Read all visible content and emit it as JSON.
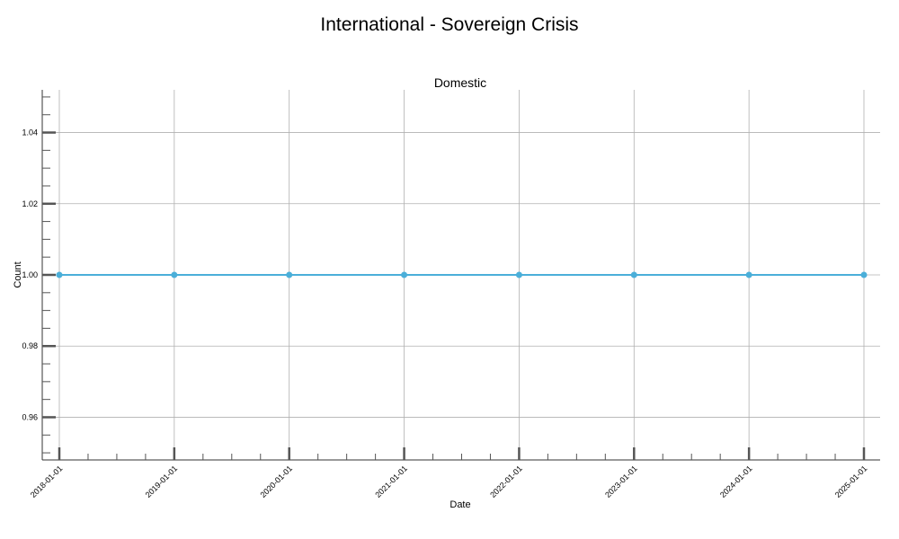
{
  "chart_data": {
    "type": "line",
    "suptitle": "International - Sovereign Crisis",
    "title": "Domestic",
    "xlabel": "Date",
    "ylabel": "Count",
    "x": [
      "2018-01-01",
      "2019-01-01",
      "2020-01-01",
      "2021-01-01",
      "2022-01-01",
      "2023-01-01",
      "2024-01-01",
      "2025-01-01"
    ],
    "series": [
      {
        "name": "Domestic",
        "values": [
          1,
          1,
          1,
          1,
          1,
          1,
          1,
          1
        ],
        "color": "#4bafd9"
      }
    ],
    "xticks": [
      "2018-01-01",
      "2019-01-01",
      "2020-01-01",
      "2021-01-01",
      "2022-01-01",
      "2023-01-01",
      "2024-01-01",
      "2025-01-01"
    ],
    "yticks": [
      0.96,
      0.98,
      1.0,
      1.02,
      1.04
    ],
    "ytick_labels": [
      "0.96",
      "0.98",
      "1.00",
      "1.02",
      "1.04"
    ],
    "ylim": [
      0.948,
      1.052
    ],
    "grid": true,
    "colors": {
      "line": "#4bafd9",
      "grid": "#b0b0b0",
      "axis": "#333333",
      "tick": "#555555"
    }
  }
}
